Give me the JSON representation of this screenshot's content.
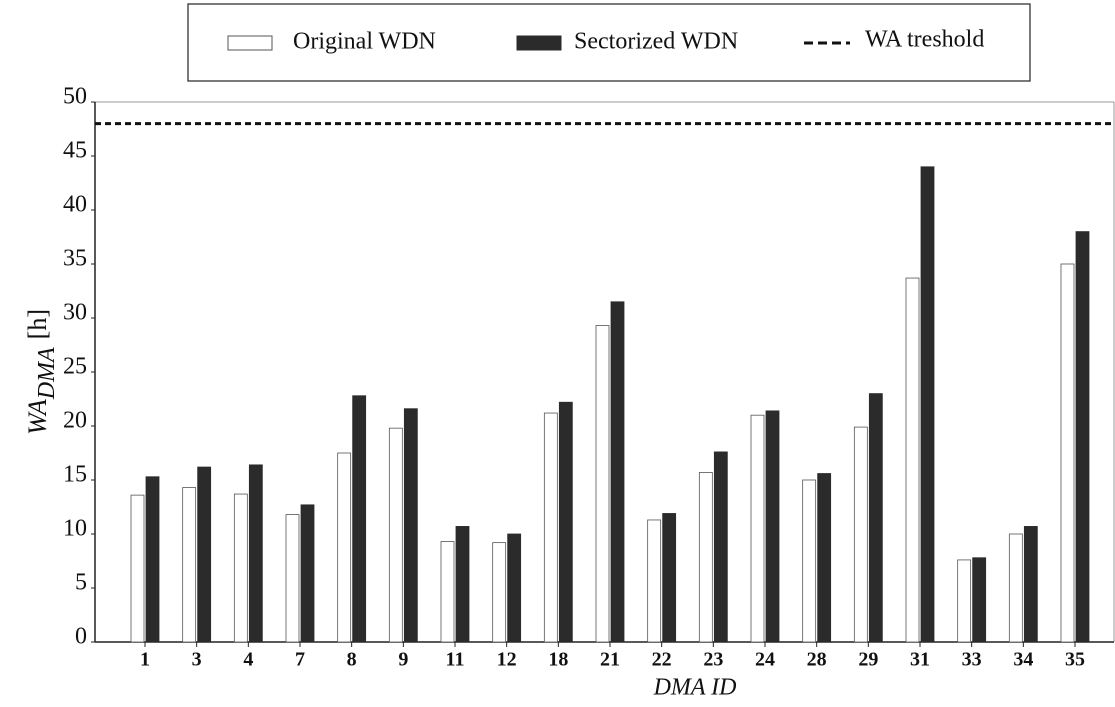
{
  "chart_data": {
    "type": "bar",
    "categories": [
      "1",
      "3",
      "4",
      "7",
      "8",
      "9",
      "11",
      "12",
      "18",
      "21",
      "22",
      "23",
      "24",
      "28",
      "29",
      "31",
      "33",
      "34",
      "35"
    ],
    "series": [
      {
        "name": "Original WDN",
        "color": "#ffffff",
        "values": [
          13.6,
          14.3,
          13.7,
          11.8,
          17.5,
          19.8,
          9.3,
          9.2,
          21.2,
          29.3,
          11.3,
          15.7,
          21.0,
          15.0,
          19.9,
          33.7,
          7.6,
          10.0,
          35.0
        ]
      },
      {
        "name": "Sectorized WDN",
        "color": "#2b2b2b",
        "values": [
          15.3,
          16.2,
          16.4,
          12.7,
          22.8,
          21.6,
          10.7,
          10.0,
          22.2,
          31.5,
          11.9,
          17.6,
          21.4,
          15.6,
          23.0,
          44.0,
          7.8,
          10.7,
          38.0
        ]
      }
    ],
    "threshold": {
      "name": "WA treshold",
      "value": 48
    },
    "xlabel": "DMA ID",
    "ylabel_main": "WA",
    "ylabel_sub": "DMA",
    "ylabel_unit": "[h]",
    "ylim": [
      0,
      50
    ],
    "yticks": [
      0,
      5,
      10,
      15,
      20,
      25,
      30,
      35,
      40,
      45,
      50
    ]
  }
}
